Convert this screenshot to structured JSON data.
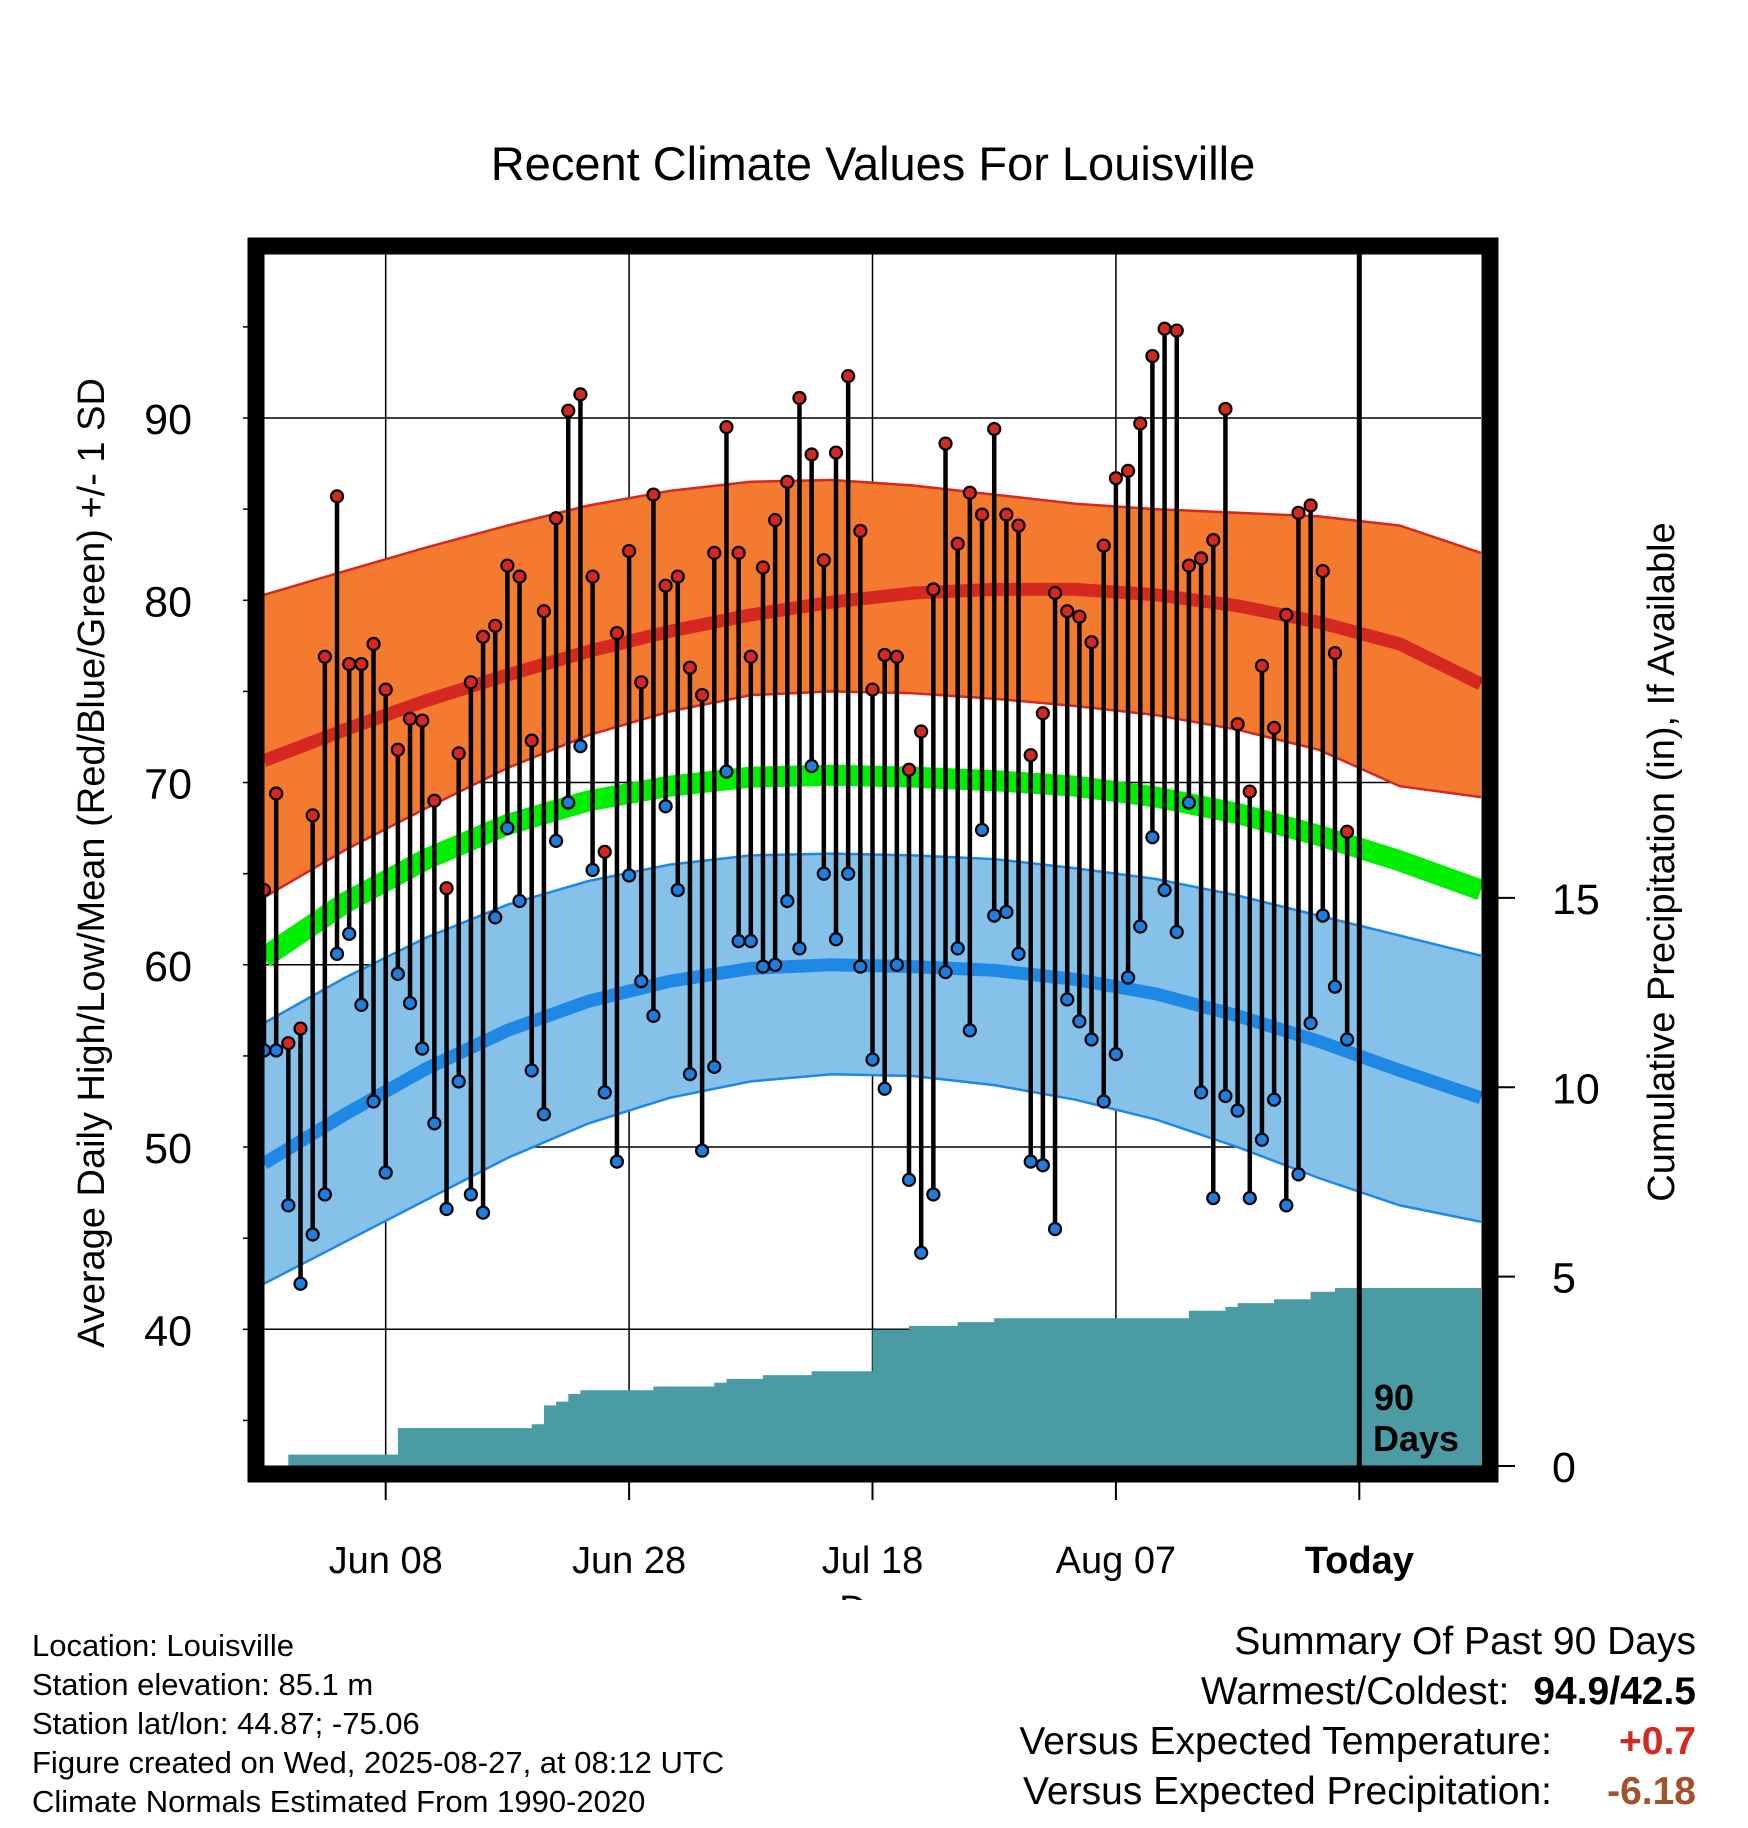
{
  "chart_data": {
    "type": "line",
    "title": "Recent Climate Values For Louisville",
    "xlabel": "Day",
    "ylabel": "Average Daily High/Low/Mean (Red/Blue/Green) +/- 1 SD",
    "y2label": "Cumulative Precipitation (in), If Available",
    "x_tick_labels": [
      "Jun 08",
      "Jun 28",
      "Jul 18",
      "Aug 07",
      "Today"
    ],
    "y_ticks": [
      40,
      50,
      60,
      70,
      80,
      90
    ],
    "y2_ticks": [
      0,
      5,
      10,
      15
    ],
    "ylim": [
      32.5,
      99
    ],
    "y2lim": [
      0,
      32
    ],
    "x_range_days": [
      1,
      101
    ],
    "x_tick_days": [
      11,
      31,
      51,
      71,
      91
    ],
    "today_day": 91,
    "window_label_line1": "90",
    "window_label_line2": "Days",
    "normal_high_mean": [
      71.2,
      72.9,
      74.5,
      75.9,
      77.2,
      78.3,
      79.2,
      79.9,
      80.4,
      80.6,
      80.6,
      80.3,
      79.7,
      78.8,
      77.6,
      75.4
    ],
    "normal_high_upper": [
      80.3,
      81.6,
      82.9,
      84.1,
      85.2,
      86.0,
      86.5,
      86.6,
      86.3,
      85.8,
      85.3,
      85.0,
      84.8,
      84.6,
      84.1,
      82.6
    ],
    "normal_high_lower": [
      63.7,
      66.3,
      68.6,
      70.8,
      72.6,
      73.9,
      74.8,
      75.0,
      74.9,
      74.6,
      74.2,
      73.7,
      72.9,
      71.8,
      69.8,
      69.2
    ],
    "normal_mean": [
      60.4,
      63.4,
      65.8,
      67.7,
      69.0,
      69.8,
      70.3,
      70.4,
      70.3,
      70.1,
      69.8,
      69.2,
      68.3,
      67.1,
      65.7,
      64.1
    ],
    "normal_low_mean": [
      49.1,
      51.8,
      54.3,
      56.4,
      58.0,
      59.1,
      59.8,
      60.0,
      59.9,
      59.7,
      59.2,
      58.4,
      57.2,
      55.8,
      54.2,
      52.7
    ],
    "normal_low_upper": [
      56.8,
      59.3,
      61.5,
      63.3,
      64.6,
      65.5,
      66.0,
      66.1,
      66.0,
      65.8,
      65.3,
      64.7,
      63.8,
      62.7,
      61.6,
      60.5
    ],
    "normal_low_lower": [
      42.5,
      44.8,
      47.1,
      49.4,
      51.3,
      52.7,
      53.6,
      54.0,
      53.9,
      53.4,
      52.6,
      51.5,
      50.0,
      48.3,
      46.8,
      45.9
    ],
    "series": [
      {
        "name": "Red",
        "values": [
          64.1,
          69.4,
          55.7,
          56.5,
          68.2,
          76.9,
          85.7,
          76.5,
          76.5,
          77.6,
          75.1,
          71.8,
          73.5,
          73.4,
          69.0,
          64.2,
          71.6,
          75.5,
          78.0,
          78.6,
          81.9,
          81.3,
          72.3,
          79.4,
          84.5,
          90.4,
          91.3,
          81.3,
          66.2,
          78.2,
          82.7,
          75.5,
          85.8,
          80.8,
          81.3,
          76.3,
          74.8,
          82.6,
          89.5,
          82.6,
          76.9,
          81.8,
          84.4,
          86.5,
          91.1,
          88.0,
          82.2,
          88.1,
          92.3,
          83.8,
          75.1,
          77.0,
          76.9,
          70.7,
          72.8,
          80.6,
          88.6,
          83.1,
          85.9,
          84.7,
          89.4,
          84.7,
          84.1,
          71.5,
          73.8,
          80.4,
          79.4,
          79.1,
          77.7,
          83.0,
          86.7,
          87.1,
          89.7,
          93.4,
          94.9,
          94.8,
          81.9,
          82.3,
          83.3,
          90.5,
          73.2,
          69.5,
          76.4,
          73.0,
          79.2,
          84.8,
          85.2,
          81.6,
          77.1,
          67.3
        ]
      },
      {
        "name": "Blue",
        "values": [
          55.3,
          55.3,
          46.8,
          42.5,
          45.2,
          47.4,
          60.6,
          61.7,
          57.8,
          52.5,
          48.6,
          59.5,
          57.9,
          55.4,
          51.3,
          46.6,
          53.6,
          47.4,
          46.4,
          62.6,
          67.5,
          63.5,
          54.2,
          51.8,
          66.8,
          68.9,
          72.0,
          65.2,
          53.0,
          49.2,
          64.9,
          59.1,
          57.2,
          68.7,
          64.1,
          54.0,
          49.8,
          54.4,
          70.6,
          61.3,
          61.3,
          59.9,
          60.0,
          63.5,
          60.9,
          70.9,
          65.0,
          61.4,
          65.0,
          59.9,
          54.8,
          53.2,
          60.0,
          48.2,
          44.2,
          47.4,
          59.6,
          60.9,
          56.4,
          67.4,
          62.7,
          62.9,
          60.6,
          49.2,
          49.0,
          45.5,
          58.1,
          56.9,
          55.9,
          52.5,
          55.1,
          59.3,
          62.1,
          67.0,
          64.1,
          61.8,
          68.9,
          53.0,
          47.2,
          52.8,
          52.0,
          47.2,
          50.4,
          52.6,
          46.8,
          48.5,
          56.8,
          62.7,
          58.8,
          55.9
        ]
      },
      {
        "name": "Cumulative Precipitation",
        "values": [
          0.0,
          0.0,
          0.3,
          0.3,
          0.3,
          0.3,
          0.3,
          0.3,
          0.3,
          0.3,
          0.3,
          1.0,
          1.0,
          1.0,
          1.0,
          1.0,
          1.0,
          1.0,
          1.0,
          1.0,
          1.0,
          1.0,
          1.1,
          1.6,
          1.7,
          1.9,
          2.0,
          2.0,
          2.0,
          2.0,
          2.0,
          2.0,
          2.1,
          2.1,
          2.1,
          2.1,
          2.1,
          2.2,
          2.3,
          2.3,
          2.3,
          2.4,
          2.4,
          2.4,
          2.4,
          2.5,
          2.5,
          2.5,
          2.5,
          2.5,
          3.6,
          3.6,
          3.6,
          3.7,
          3.7,
          3.7,
          3.7,
          3.8,
          3.8,
          3.8,
          3.9,
          3.9,
          3.9,
          3.9,
          3.9,
          3.9,
          3.9,
          3.9,
          3.9,
          3.9,
          3.9,
          3.9,
          3.9,
          3.9,
          3.9,
          3.9,
          4.1,
          4.1,
          4.1,
          4.2,
          4.3,
          4.3,
          4.3,
          4.4,
          4.4,
          4.4,
          4.6,
          4.6,
          4.7,
          4.7,
          4.7,
          4.7,
          4.7,
          4.7,
          4.7,
          4.7,
          4.7,
          4.7,
          4.7,
          4.7
        ]
      }
    ],
    "colors": {
      "high_band": "#f47a30",
      "high_band_edge": "#d42820",
      "high_mean": "#d42820",
      "mean_band": "#00ee00",
      "low_band": "#85c1e9",
      "low_band_edge": "#1e88e5",
      "low_mean": "#1e88e5",
      "high_marker": "#d42820",
      "low_marker": "#1e7ee0",
      "precip_fill": "#4a9ba3",
      "frame": "#000000"
    }
  },
  "footer_left": {
    "location": "Location: Louisville",
    "elevation": "Station elevation: 85.1 m",
    "latlon": "Station lat/lon: 44.87; -75.06",
    "created": "Figure created on Wed, 2025-08-27, at 08:12 UTC",
    "normals": "Climate Normals Estimated From 1990-2020"
  },
  "footer_right": {
    "heading": "Summary Of Past 90 Days",
    "warmest_label": "Warmest/Coldest:",
    "warmest_value": "94.9/42.5",
    "temp_label": "Versus Expected Temperature:",
    "temp_value": "+0.7",
    "temp_color": "#d42820",
    "precip_label": "Versus Expected Precipitation:",
    "precip_value": "-6.18",
    "precip_color": "#a0522d"
  }
}
